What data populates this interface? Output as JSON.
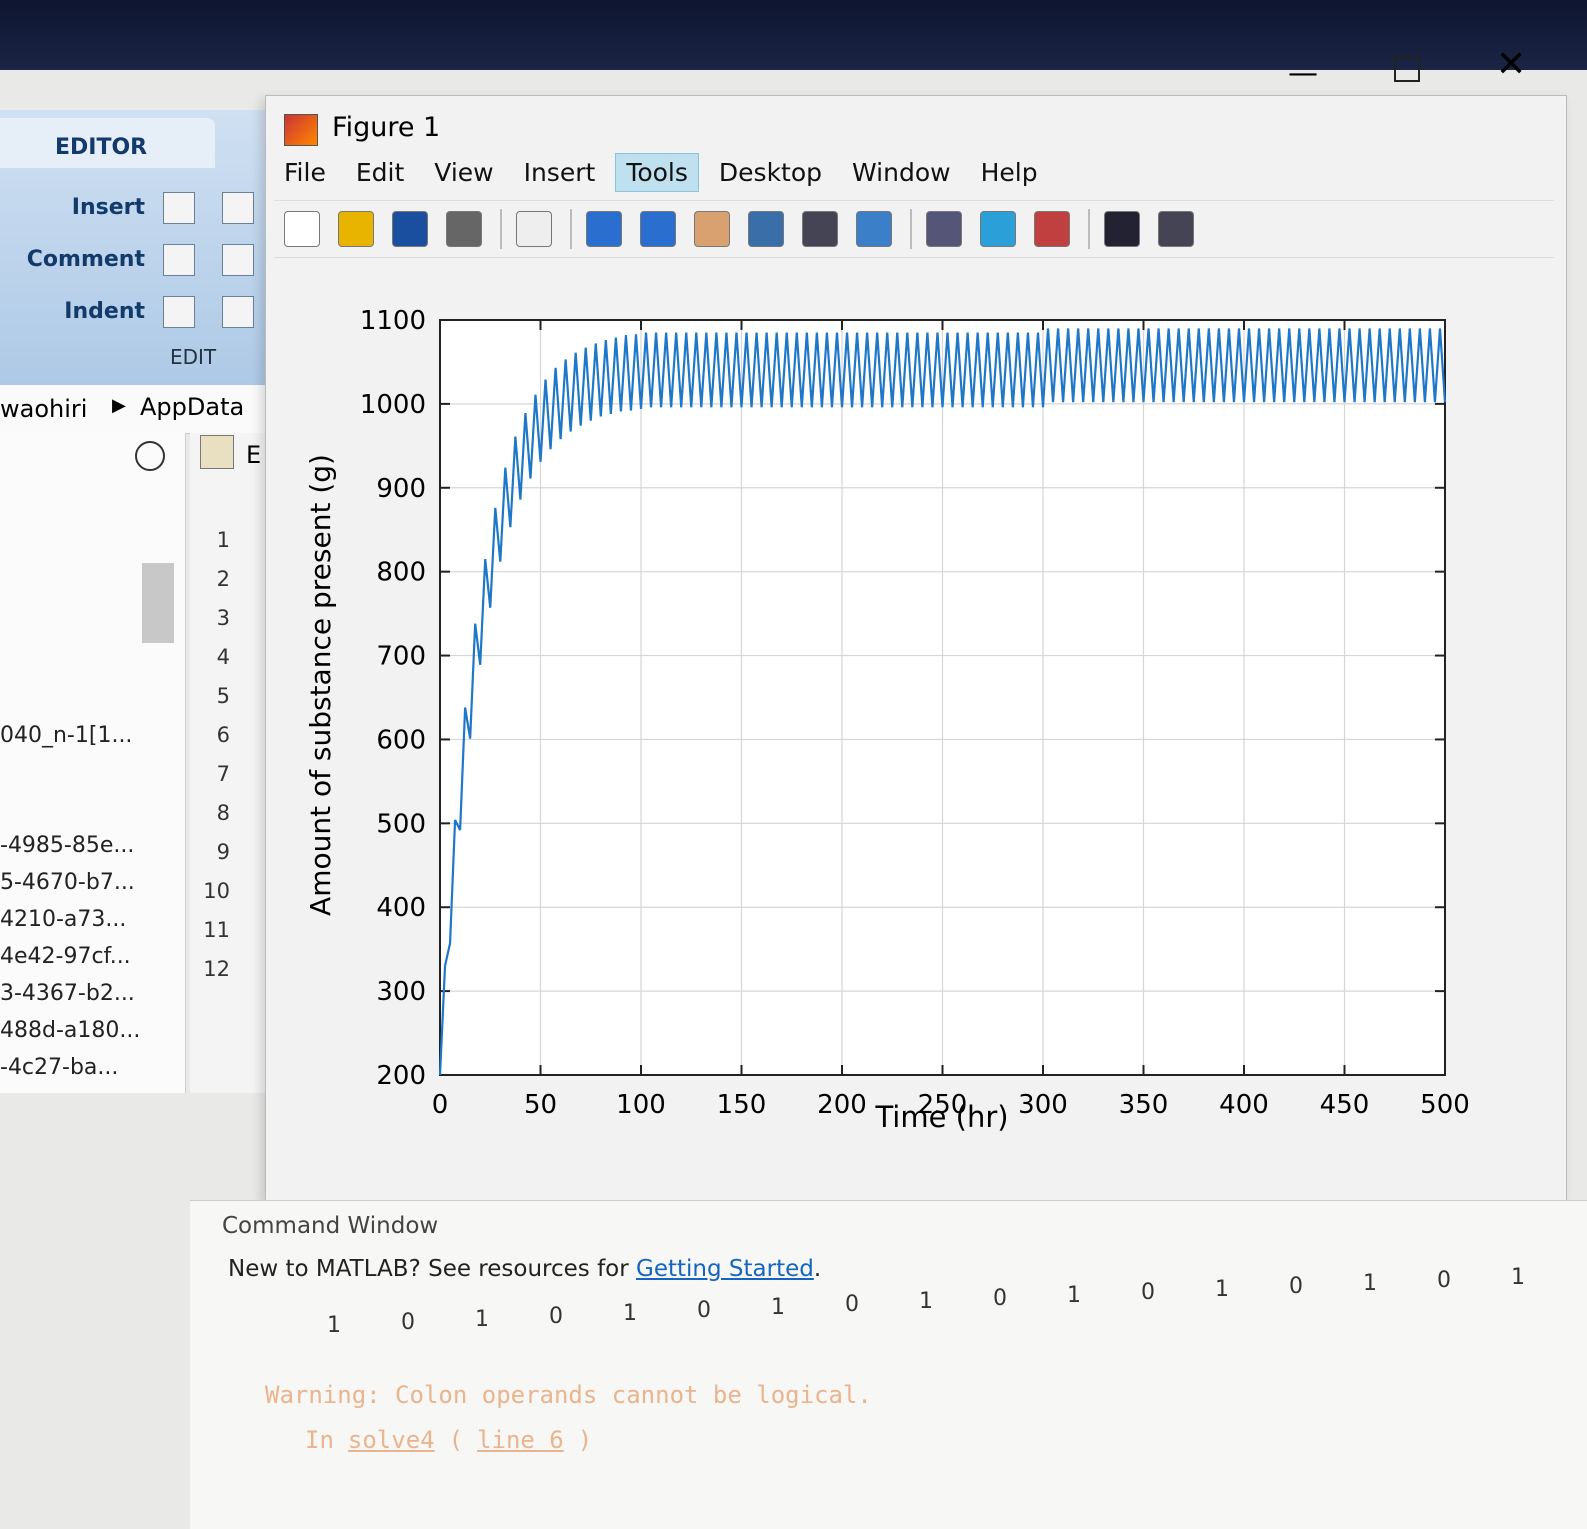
{
  "editor": {
    "tab": "EDITOR",
    "buttons": [
      "Insert",
      "Comment",
      "Indent"
    ],
    "group": "EDIT",
    "path": [
      "waohiri",
      "AppData"
    ],
    "files": [
      "040_n-1[1...",
      "-4985-85e...",
      "5-4670-b7...",
      "4210-a73...",
      "4e42-97cf...",
      "3-4367-b2...",
      "488d-a180...",
      "-4c27-ba..."
    ],
    "editor_tab": "E",
    "line_numbers": [
      1,
      2,
      3,
      4,
      5,
      6,
      7,
      8,
      9,
      10,
      11,
      12
    ]
  },
  "figure": {
    "title": "Figure 1",
    "menu": [
      "File",
      "Edit",
      "View",
      "Insert",
      "Tools",
      "Desktop",
      "Window",
      "Help"
    ]
  },
  "chart_data": {
    "type": "line",
    "xlabel": "Time (hr)",
    "ylabel": "Amount of substance present (g)",
    "color": "#1f77c8",
    "grid": true,
    "xlim": [
      0,
      500
    ],
    "ylim": [
      200,
      1100
    ],
    "xticks": [
      0,
      50,
      100,
      150,
      200,
      250,
      300,
      350,
      400,
      450,
      500
    ],
    "yticks": [
      200,
      300,
      400,
      500,
      600,
      700,
      800,
      900,
      1000,
      1100
    ],
    "x": [
      0,
      2.5,
      5,
      7.5,
      10,
      12.5,
      15,
      17.5,
      20,
      22.5,
      25,
      27.5,
      30,
      32.5,
      35,
      37.5,
      40,
      42.5,
      45,
      47.5,
      50,
      52.5,
      55,
      57.5,
      60,
      62.5,
      65,
      67.5,
      70,
      72.5,
      75,
      77.5,
      80,
      82.5,
      85,
      87.5,
      90,
      92.5,
      95,
      97.5,
      100,
      102.5,
      105,
      107.5,
      110,
      112.5,
      115,
      117.5,
      120,
      122.5,
      125,
      127.5,
      130,
      132.5,
      135,
      137.5,
      140,
      142.5,
      145,
      147.5,
      150,
      152.5,
      155,
      157.5,
      160,
      162.5,
      165,
      167.5,
      170,
      172.5,
      175,
      177.5,
      180,
      182.5,
      185,
      187.5,
      190,
      192.5,
      195,
      197.5,
      200,
      202.5,
      205,
      207.5,
      210,
      212.5,
      215,
      217.5,
      220,
      222.5,
      225,
      227.5,
      230,
      232.5,
      235,
      237.5,
      240,
      242.5,
      245,
      247.5,
      250,
      252.5,
      255,
      257.5,
      260,
      262.5,
      265,
      267.5,
      270,
      272.5,
      275,
      277.5,
      280,
      282.5,
      285,
      287.5,
      290,
      292.5,
      295,
      297.5,
      300,
      302.5,
      305,
      307.5,
      310,
      312.5,
      315,
      317.5,
      320,
      322.5,
      325,
      327.5,
      330,
      332.5,
      335,
      337.5,
      340,
      342.5,
      345,
      347.5,
      350,
      352.5,
      355,
      357.5,
      360,
      362.5,
      365,
      367.5,
      370,
      372.5,
      375,
      377.5,
      380,
      382.5,
      385,
      387.5,
      390,
      392.5,
      395,
      397.5,
      400,
      402.5,
      405,
      407.5,
      410,
      412.5,
      415,
      417.5,
      420,
      422.5,
      425,
      427.5,
      430,
      432.5,
      435,
      437.5,
      440,
      442.5,
      445,
      447.5,
      450,
      452.5,
      455,
      457.5,
      460,
      462.5,
      465,
      467.5,
      470,
      472.5,
      475,
      477.5,
      480,
      482.5,
      485,
      487.5,
      490,
      492.5,
      495,
      497.5,
      500
    ],
    "values": [
      200,
      330,
      357,
      504,
      492,
      638,
      601,
      738,
      689,
      815,
      757,
      876,
      812,
      924,
      853,
      961,
      886,
      989,
      911,
      1011,
      931,
      1029,
      946,
      1043,
      958,
      1053,
      967,
      1061,
      974,
      1067,
      980,
      1072,
      985,
      1076,
      988,
      1079,
      991,
      1082,
      992,
      1083,
      994,
      1085,
      996,
      1085,
      996,
      1085,
      996,
      1085,
      996,
      1085,
      996,
      1085,
      996,
      1085,
      996,
      1085,
      996,
      1085,
      996,
      1085,
      996,
      1085,
      996,
      1085,
      996,
      1085,
      996,
      1085,
      996,
      1085,
      996,
      1085,
      996,
      1085,
      996,
      1085,
      996,
      1085,
      996,
      1085,
      996,
      1085,
      996,
      1085,
      996,
      1085,
      996,
      1085,
      996,
      1085,
      996,
      1085,
      996,
      1085,
      996,
      1085,
      996,
      1085,
      996,
      1085,
      996,
      1085,
      996,
      1085,
      996,
      1085,
      996,
      1085,
      996,
      1085,
      996,
      1085,
      996,
      1085,
      996,
      1085,
      996,
      1085,
      996,
      1085,
      996,
      1090,
      1002,
      1090,
      1002,
      1090,
      1002,
      1090,
      1002,
      1090,
      1002,
      1090,
      1002,
      1090,
      1002,
      1090,
      1002,
      1090,
      1002,
      1090,
      1002,
      1090,
      1002,
      1090,
      1002,
      1090,
      1002,
      1090,
      1002,
      1090,
      1002,
      1090,
      1002,
      1090,
      1002,
      1090,
      1002,
      1090,
      1002,
      1090,
      1002,
      1090,
      1002,
      1090,
      1002,
      1090,
      1002,
      1090,
      1002,
      1090,
      1002,
      1090,
      1002,
      1090,
      1002,
      1090,
      1002,
      1090,
      1002,
      1090,
      1002,
      1090,
      1002,
      1090,
      1002,
      1090,
      1002,
      1090,
      1002,
      1090,
      1002,
      1090,
      1002,
      1090,
      1002,
      1090,
      1002,
      1090,
      1002,
      1090,
      1002
    ]
  },
  "command_window": {
    "title": "Command Window",
    "intro": "New to MATLAB? See resources for",
    "link": "Getting Started",
    "intro_end": ".",
    "output": [
      1,
      0,
      1,
      0,
      1,
      0,
      1,
      0,
      1,
      0,
      1,
      0,
      1,
      0,
      1,
      0,
      1
    ],
    "warning": "Warning: Colon operands cannot be logical.",
    "location": [
      "In",
      "solve4",
      "(",
      "line 6",
      ")"
    ]
  }
}
